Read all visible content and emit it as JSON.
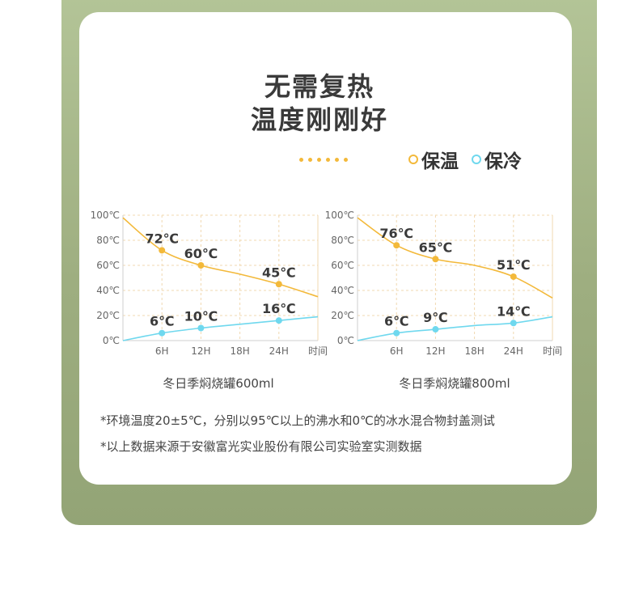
{
  "title": {
    "line1": "无需复热",
    "line2": "温度刚刚好"
  },
  "legend": {
    "warm_label": "保温",
    "cold_label": "保冷",
    "warm_color": "#f3b93a",
    "cold_color": "#6fd8ee"
  },
  "chart_data": [
    {
      "type": "line",
      "title": "冬日季焖烧罐600ml",
      "xlabel": "时间",
      "ylabel": "",
      "x_ticks": [
        "6H",
        "12H",
        "18H",
        "24H"
      ],
      "y_ticks": [
        "100℃",
        "80℃",
        "60℃",
        "40℃",
        "20℃",
        "0℃"
      ],
      "xlim": [
        0,
        30
      ],
      "ylim": [
        0,
        100
      ],
      "grid": true,
      "series": [
        {
          "name": "保温",
          "color": "#f3b93a",
          "curve": [
            [
              0,
              98
            ],
            [
              6,
              72
            ],
            [
              12,
              60
            ],
            [
              18,
              53
            ],
            [
              24,
              45
            ],
            [
              30,
              35
            ]
          ],
          "points": [
            {
              "x": 6,
              "y": 72,
              "label": "72℃"
            },
            {
              "x": 12,
              "y": 60,
              "label": "60℃"
            },
            {
              "x": 24,
              "y": 45,
              "label": "45℃"
            }
          ]
        },
        {
          "name": "保冷",
          "color": "#6fd8ee",
          "curve": [
            [
              0,
              0
            ],
            [
              6,
              6
            ],
            [
              12,
              10
            ],
            [
              18,
              13
            ],
            [
              24,
              16
            ],
            [
              30,
              19
            ]
          ],
          "points": [
            {
              "x": 6,
              "y": 6,
              "label": "6℃"
            },
            {
              "x": 12,
              "y": 10,
              "label": "10℃"
            },
            {
              "x": 24,
              "y": 16,
              "label": "16℃"
            }
          ]
        }
      ]
    },
    {
      "type": "line",
      "title": "冬日季焖烧罐800ml",
      "xlabel": "时间",
      "ylabel": "",
      "x_ticks": [
        "6H",
        "12H",
        "18H",
        "24H"
      ],
      "y_ticks": [
        "100℃",
        "80℃",
        "60℃",
        "40℃",
        "20℃",
        "0℃"
      ],
      "xlim": [
        0,
        30
      ],
      "ylim": [
        0,
        100
      ],
      "grid": true,
      "series": [
        {
          "name": "保温",
          "color": "#f3b93a",
          "curve": [
            [
              0,
              98
            ],
            [
              6,
              76
            ],
            [
              12,
              65
            ],
            [
              18,
              60
            ],
            [
              24,
              51
            ],
            [
              30,
              34
            ]
          ],
          "points": [
            {
              "x": 6,
              "y": 76,
              "label": "76℃"
            },
            {
              "x": 12,
              "y": 65,
              "label": "65℃"
            },
            {
              "x": 24,
              "y": 51,
              "label": "51℃"
            }
          ]
        },
        {
          "name": "保冷",
          "color": "#6fd8ee",
          "curve": [
            [
              0,
              0
            ],
            [
              6,
              6
            ],
            [
              12,
              9
            ],
            [
              18,
              12
            ],
            [
              24,
              14
            ],
            [
              30,
              19
            ]
          ],
          "points": [
            {
              "x": 6,
              "y": 6,
              "label": "6℃"
            },
            {
              "x": 12,
              "y": 9,
              "label": "9℃"
            },
            {
              "x": 24,
              "y": 14,
              "label": "14℃"
            }
          ]
        }
      ]
    }
  ],
  "notes": {
    "line1": "*环境温度20±5℃，分别以95℃以上的沸水和0℃的冰水混合物封盖测试",
    "line2": "*以上数据来源于安徽富光实业股份有限公司实验室实测数据"
  }
}
